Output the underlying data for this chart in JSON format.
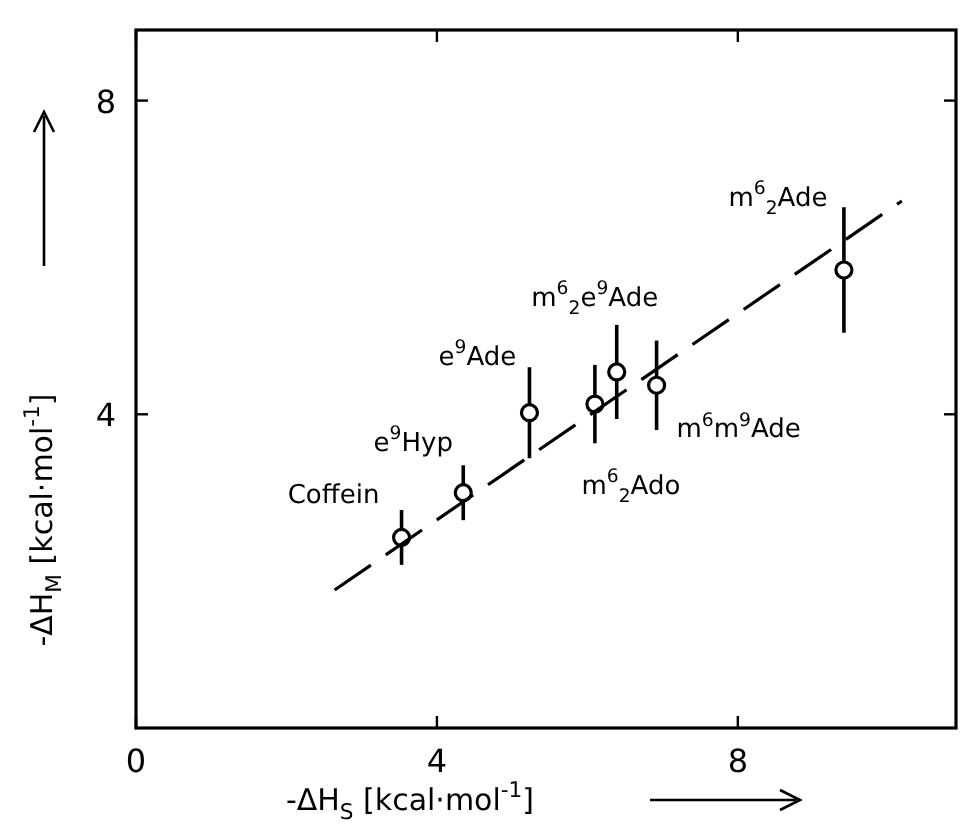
{
  "chart_data": {
    "type": "scatter",
    "xlabel": "-ΔH$_{S}$ [kcal·mol$^{-1}$]",
    "ylabel": "-ΔH$_{M}$ [kcal·mol$^{-1}$]",
    "xlim": [
      0,
      10.9
    ],
    "ylim": [
      0,
      8.9
    ],
    "xticks": [
      0,
      4,
      8
    ],
    "yticks": [
      4,
      8
    ],
    "grid": false,
    "marker": "circle",
    "series": [
      {
        "color": "#000000",
        "x": [
          3.53,
          4.35,
          5.23,
          6.1,
          6.39,
          6.92,
          9.41
        ],
        "values": [
          2.43,
          3.0,
          4.02,
          4.13,
          4.54,
          4.37,
          5.84
        ],
        "errors": [
          0.35,
          0.35,
          0.58,
          0.5,
          0.6,
          0.57,
          0.8
        ]
      },
      {
        "type": "line",
        "color": "#000000",
        "line_style": "dashed",
        "marker": "none",
        "x": [
          2.64,
          10.18
        ],
        "values": [
          1.76,
          6.72
        ]
      }
    ],
    "annotations": [
      {
        "text": "Coffein",
        "x": 3.53,
        "y": 2.43
      },
      {
        "text": "e$^{9}$Hyp",
        "x": 4.35,
        "y": 3.0
      },
      {
        "text": "e$^{9}$Ade",
        "x": 5.23,
        "y": 4.02
      },
      {
        "text": "m$^{6}$$_{2}$Ado",
        "x": 6.1,
        "y": 4.13
      },
      {
        "text": "m$^{6}$$_{2}$e$^{9}$Ade",
        "x": 6.39,
        "y": 4.54
      },
      {
        "text": "m$^{6}$m$^{9}$Ade",
        "x": 6.92,
        "y": 4.37
      },
      {
        "text": "m$^{6}$$_{2}$Ade",
        "x": 9.41,
        "y": 5.84
      }
    ]
  }
}
